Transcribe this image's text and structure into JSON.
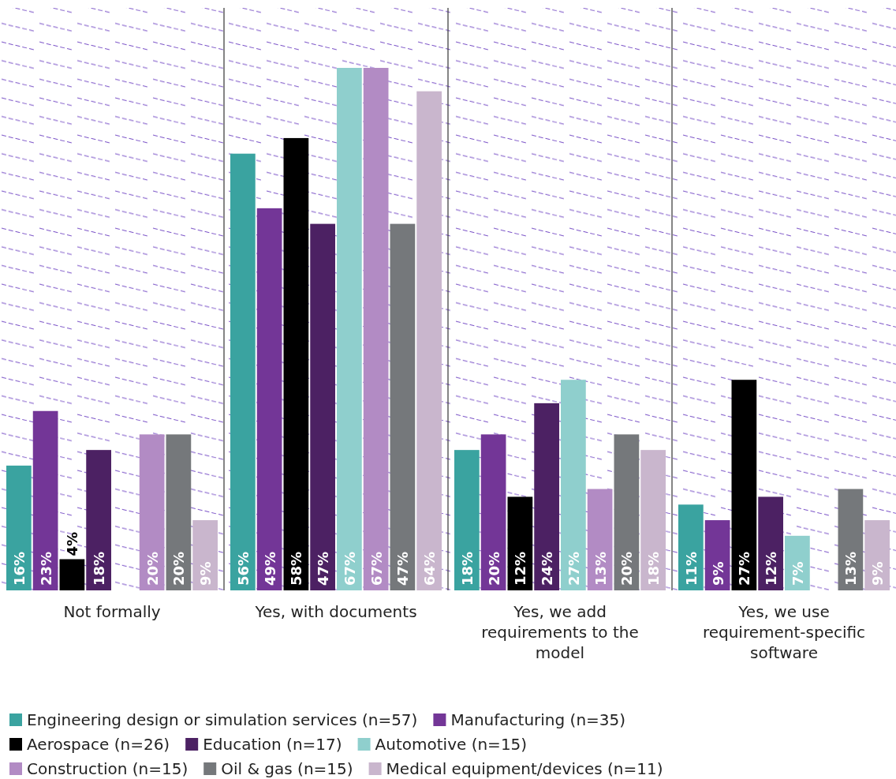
{
  "chart_data": {
    "type": "bar",
    "categories": [
      "Not formally",
      "Yes, with documents",
      "Yes, we add requirements to the model",
      "Yes, we use requirement-specific software"
    ],
    "series": [
      {
        "name": "Engineering design or simulation services (n=57)",
        "color": "#3aa3a0",
        "values": [
          16,
          56,
          18,
          11
        ],
        "value_labels": [
          "16%",
          "56%",
          "18%",
          "11%"
        ]
      },
      {
        "name": "Manufacturing (n=35)",
        "color": "#733697",
        "values": [
          23,
          49,
          20,
          9
        ],
        "value_labels": [
          "23%",
          "49%",
          "20%",
          "9%"
        ]
      },
      {
        "name": "Aerospace (n=26)",
        "color": "#000000",
        "values": [
          4,
          58,
          12,
          27
        ],
        "value_labels": [
          "4%",
          "58%",
          "12%",
          "27%"
        ]
      },
      {
        "name": "Education (n=17)",
        "color": "#4c2163",
        "values": [
          18,
          47,
          24,
          12
        ],
        "value_labels": [
          "18%",
          "47%",
          "24%",
          "12%"
        ]
      },
      {
        "name": "Automotive (n=15)",
        "color": "#8fcfcd",
        "values": [
          null,
          67,
          27,
          7
        ],
        "value_labels": [
          null,
          "67%",
          "27%",
          "7%"
        ]
      },
      {
        "name": "Construction (n=15)",
        "color": "#b28bc4",
        "values": [
          20,
          67,
          13,
          null
        ],
        "value_labels": [
          "20%",
          "67%",
          "13%",
          null
        ]
      },
      {
        "name": "Oil & gas (n=15)",
        "color": "#75787b",
        "values": [
          20,
          47,
          20,
          13
        ],
        "value_labels": [
          "20%",
          "47%",
          "20%",
          "13%"
        ]
      },
      {
        "name": "Medical equipment/devices (n=11)",
        "color": "#c9b6cd",
        "values": [
          9,
          64,
          18,
          9
        ],
        "value_labels": [
          "9%",
          "64%",
          "18%",
          "9%"
        ]
      }
    ],
    "legend": "bottom"
  }
}
